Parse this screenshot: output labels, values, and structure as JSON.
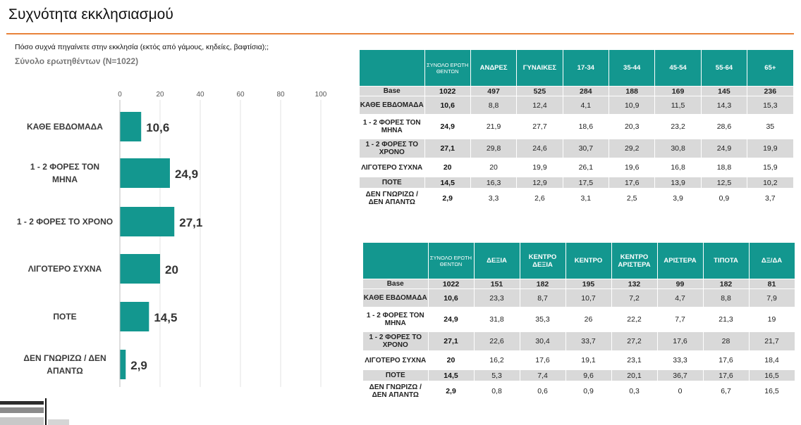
{
  "page": {
    "title": "Συχνότητα εκκλησιασμού",
    "question": "Πόσο συχνά πηγαίνετε στην εκκλησία (εκτός από γάμους, κηδείες, βαφτίσια);;",
    "base_note": "Σύνολο ερωτηθέντων (N=1022)"
  },
  "colors": {
    "bar": "#13978f",
    "header": "#13978f",
    "accent_rule": "#e8833a",
    "shade": "#d9d9d9"
  },
  "chart_data": {
    "type": "bar",
    "orientation": "horizontal",
    "categories": [
      "ΚΑΘΕ ΕΒΔΟΜΑΔΑ",
      "1 - 2 ΦΟΡΕΣ ΤΟΝ ΜΗΝΑ",
      "1 - 2 ΦΟΡΕΣ ΤΟ ΧΡΟΝΟ",
      "ΛΙΓΟΤΕΡΟ ΣΥΧΝΑ",
      "ΠΟΤΕ",
      "ΔΕΝ ΓΝΩΡΙΖΩ / ΔΕΝ ΑΠΑΝΤΩ"
    ],
    "category_lines": [
      [
        "ΚΑΘΕ ΕΒΔΟΜΑΔΑ"
      ],
      [
        "1 - 2 ΦΟΡΕΣ ΤΟΝ",
        "ΜΗΝΑ"
      ],
      [
        "1 - 2 ΦΟΡΕΣ ΤΟ ΧΡΟΝΟ"
      ],
      [
        "ΛΙΓΟΤΕΡΟ ΣΥΧΝΑ"
      ],
      [
        "ΠΟΤΕ"
      ],
      [
        "ΔΕΝ ΓΝΩΡΙΖΩ / ΔΕΝ",
        "ΑΠΑΝΤΩ"
      ]
    ],
    "values": [
      10.6,
      24.9,
      27.1,
      20,
      14.5,
      2.9
    ],
    "value_labels": [
      "10,6",
      "24,9",
      "27,1",
      "20",
      "14,5",
      "2,9"
    ],
    "xlim": [
      0,
      100
    ],
    "xticks": [
      0,
      20,
      40,
      60,
      80,
      100
    ],
    "grid": true
  },
  "table_demo": {
    "columns": [
      "ΣΥΝΟΛΟ ΕΡΩΤΗ ΘΕΝΤΩΝ",
      "ΑΝΔΡΕΣ",
      "ΓΥΝΑΙΚΕΣ",
      "17-34",
      "35-44",
      "45-54",
      "55-64",
      "65+"
    ],
    "rows": [
      {
        "label": "Base",
        "values": [
          "1022",
          "497",
          "525",
          "284",
          "188",
          "169",
          "145",
          "236"
        ]
      },
      {
        "label": "ΚΑΘΕ ΕΒΔΟΜΑΔΑ",
        "values": [
          "10,6",
          "8,8",
          "12,4",
          "4,1",
          "10,9",
          "11,5",
          "14,3",
          "15,3"
        ]
      },
      {
        "label": "1 - 2 ΦΟΡΕΣ ΤΟΝ ΜΗΝΑ",
        "values": [
          "24,9",
          "21,9",
          "27,7",
          "18,6",
          "20,3",
          "23,2",
          "28,6",
          "35"
        ]
      },
      {
        "label": "1 - 2 ΦΟΡΕΣ ΤΟ ΧΡΟΝΟ",
        "values": [
          "27,1",
          "29,8",
          "24,6",
          "30,7",
          "29,2",
          "30,8",
          "24,9",
          "19,9"
        ]
      },
      {
        "label": "ΛΙΓΟΤΕΡΟ ΣΥΧΝΑ",
        "values": [
          "20",
          "20",
          "19,9",
          "26,1",
          "19,6",
          "16,8",
          "18,8",
          "15,9"
        ]
      },
      {
        "label": "ΠΟΤΕ",
        "values": [
          "14,5",
          "16,3",
          "12,9",
          "17,5",
          "17,6",
          "13,9",
          "12,5",
          "10,2"
        ]
      },
      {
        "label": "ΔΕΝ ΓΝΩΡΙΖΩ / ΔΕΝ ΑΠΑΝΤΩ",
        "values": [
          "2,9",
          "3,3",
          "2,6",
          "3,1",
          "2,5",
          "3,9",
          "0,9",
          "3,7"
        ]
      }
    ]
  },
  "table_political": {
    "columns": [
      "ΣΥΝΟΛΟ ΕΡΩΤΗ ΘΕΝΤΩΝ",
      "ΔΕΞΙΑ",
      "ΚΕΝΤΡΟ ΔΕΞΙΑ",
      "ΚΕΝΤΡΟ",
      "ΚΕΝΤΡΟ ΑΡΙΣΤΕΡΑ",
      "ΑΡΙΣΤΕΡΑ",
      "ΤΙΠΟΤΑ",
      "ΔΞ/ΔΑ"
    ],
    "rows": [
      {
        "label": "Base",
        "values": [
          "1022",
          "151",
          "182",
          "195",
          "132",
          "99",
          "182",
          "81"
        ]
      },
      {
        "label": "ΚΑΘΕ ΕΒΔΟΜΑΔΑ",
        "values": [
          "10,6",
          "23,3",
          "8,7",
          "10,7",
          "7,2",
          "4,7",
          "8,8",
          "7,9"
        ]
      },
      {
        "label": "1 - 2 ΦΟΡΕΣ ΤΟΝ ΜΗΝΑ",
        "values": [
          "24,9",
          "31,8",
          "35,3",
          "26",
          "22,2",
          "7,7",
          "21,3",
          "19"
        ]
      },
      {
        "label": "1 - 2 ΦΟΡΕΣ ΤΟ ΧΡΟΝΟ",
        "values": [
          "27,1",
          "22,6",
          "30,4",
          "33,7",
          "27,2",
          "17,6",
          "28",
          "21,7"
        ]
      },
      {
        "label": "ΛΙΓΟΤΕΡΟ ΣΥΧΝΑ",
        "values": [
          "20",
          "16,2",
          "17,6",
          "19,1",
          "23,1",
          "33,3",
          "17,6",
          "18,4"
        ]
      },
      {
        "label": "ΠΟΤΕ",
        "values": [
          "14,5",
          "5,3",
          "7,4",
          "9,6",
          "20,1",
          "36,7",
          "17,6",
          "16,5"
        ]
      },
      {
        "label": "ΔΕΝ ΓΝΩΡΙΖΩ / ΔΕΝ ΑΠΑΝΤΩ",
        "values": [
          "2,9",
          "0,8",
          "0,6",
          "0,9",
          "0,3",
          "0",
          "6,7",
          "16,5"
        ]
      }
    ]
  }
}
